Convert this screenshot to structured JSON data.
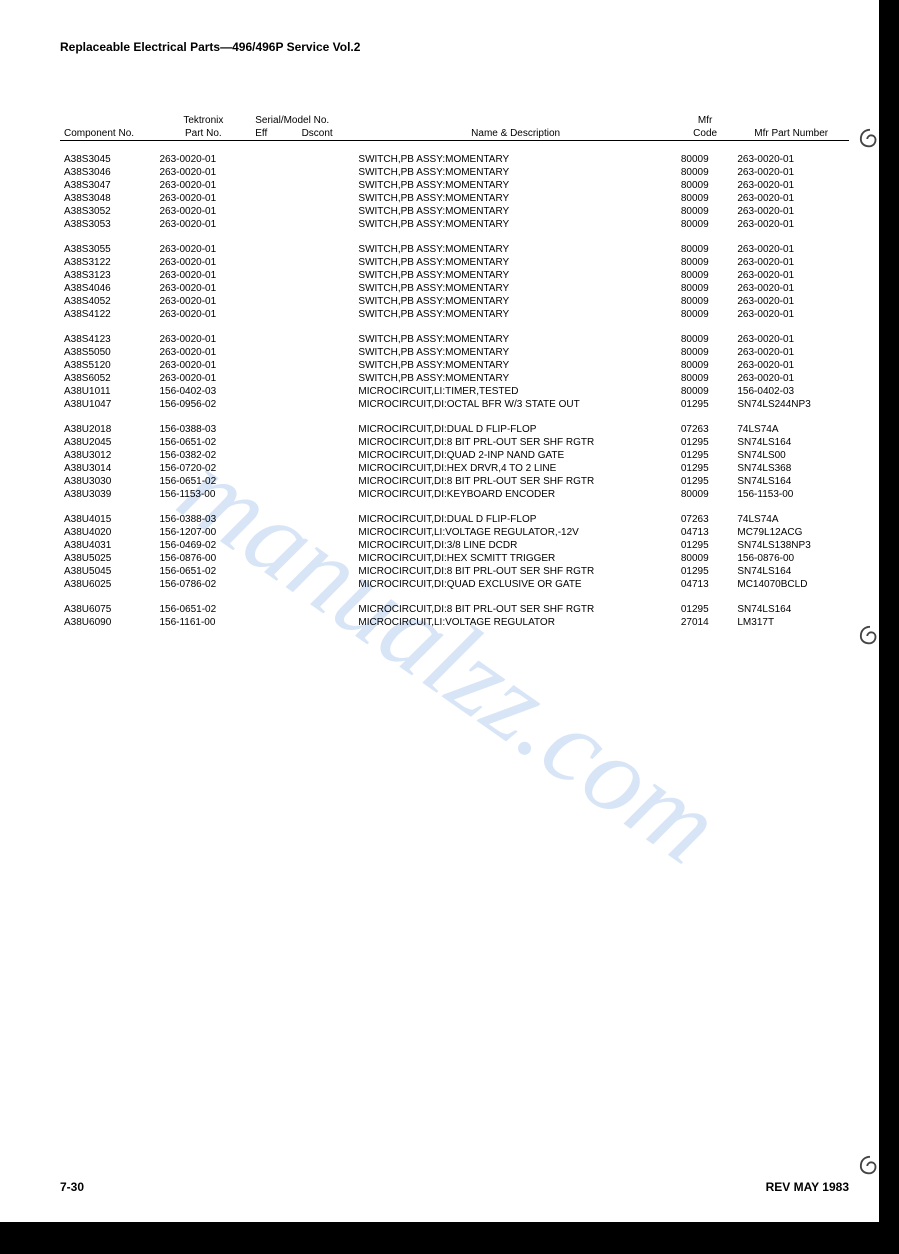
{
  "doc_title": "Replaceable Electrical Parts—496/496P Service Vol.2",
  "headers": {
    "comp": "Component No.",
    "tek_top": "Tektronix",
    "tek_bot": "Part No.",
    "serial_top": "Serial/Model No.",
    "eff": "Eff",
    "dscont": "Dscont",
    "name": "Name & Description",
    "mfr_top": "Mfr",
    "mfr_bot": "Code",
    "mfr_part": "Mfr Part Number"
  },
  "rows": [
    {
      "c": "A38S3045",
      "p": "263-0020-01",
      "n": "SWITCH,PB ASSY:MOMENTARY",
      "m": "80009",
      "mp": "263-0020-01"
    },
    {
      "c": "A38S3046",
      "p": "263-0020-01",
      "n": "SWITCH,PB ASSY:MOMENTARY",
      "m": "80009",
      "mp": "263-0020-01"
    },
    {
      "c": "A38S3047",
      "p": "263-0020-01",
      "n": "SWITCH,PB ASSY:MOMENTARY",
      "m": "80009",
      "mp": "263-0020-01"
    },
    {
      "c": "A38S3048",
      "p": "263-0020-01",
      "n": "SWITCH,PB ASSY:MOMENTARY",
      "m": "80009",
      "mp": "263-0020-01"
    },
    {
      "c": "A38S3052",
      "p": "263-0020-01",
      "n": "SWITCH,PB ASSY:MOMENTARY",
      "m": "80009",
      "mp": "263-0020-01"
    },
    {
      "c": "A38S3053",
      "p": "263-0020-01",
      "n": "SWITCH,PB ASSY:MOMENTARY",
      "m": "80009",
      "mp": "263-0020-01"
    },
    {
      "gap": true
    },
    {
      "c": "A38S3055",
      "p": "263-0020-01",
      "n": "SWITCH,PB ASSY:MOMENTARY",
      "m": "80009",
      "mp": "263-0020-01"
    },
    {
      "c": "A38S3122",
      "p": "263-0020-01",
      "n": "SWITCH,PB ASSY:MOMENTARY",
      "m": "80009",
      "mp": "263-0020-01"
    },
    {
      "c": "A38S3123",
      "p": "263-0020-01",
      "n": "SWITCH,PB ASSY:MOMENTARY",
      "m": "80009",
      "mp": "263-0020-01"
    },
    {
      "c": "A38S4046",
      "p": "263-0020-01",
      "n": "SWITCH,PB ASSY:MOMENTARY",
      "m": "80009",
      "mp": "263-0020-01"
    },
    {
      "c": "A38S4052",
      "p": "263-0020-01",
      "n": "SWITCH,PB ASSY:MOMENTARY",
      "m": "80009",
      "mp": "263-0020-01"
    },
    {
      "c": "A38S4122",
      "p": "263-0020-01",
      "n": "SWITCH,PB ASSY:MOMENTARY",
      "m": "80009",
      "mp": "263-0020-01"
    },
    {
      "gap": true
    },
    {
      "c": "A38S4123",
      "p": "263-0020-01",
      "n": "SWITCH,PB ASSY:MOMENTARY",
      "m": "80009",
      "mp": "263-0020-01"
    },
    {
      "c": "A38S5050",
      "p": "263-0020-01",
      "n": "SWITCH,PB ASSY:MOMENTARY",
      "m": "80009",
      "mp": "263-0020-01"
    },
    {
      "c": "A38S5120",
      "p": "263-0020-01",
      "n": "SWITCH,PB ASSY:MOMENTARY",
      "m": "80009",
      "mp": "263-0020-01"
    },
    {
      "c": "A38S6052",
      "p": "263-0020-01",
      "n": "SWITCH,PB ASSY:MOMENTARY",
      "m": "80009",
      "mp": "263-0020-01"
    },
    {
      "c": "A38U1011",
      "p": "156-0402-03",
      "n": "MICROCIRCUIT,LI:TIMER,TESTED",
      "m": "80009",
      "mp": "156-0402-03"
    },
    {
      "c": "A38U1047",
      "p": "156-0956-02",
      "n": "MICROCIRCUIT,DI:OCTAL BFR W/3 STATE OUT",
      "m": "01295",
      "mp": "SN74LS244NP3"
    },
    {
      "gap": true
    },
    {
      "c": "A38U2018",
      "p": "156-0388-03",
      "n": "MICROCIRCUIT,DI:DUAL D FLIP-FLOP",
      "m": "07263",
      "mp": "74LS74A"
    },
    {
      "c": "A38U2045",
      "p": "156-0651-02",
      "n": "MICROCIRCUIT,DI:8 BIT PRL-OUT SER SHF RGTR",
      "m": "01295",
      "mp": "SN74LS164"
    },
    {
      "c": "A38U3012",
      "p": "156-0382-02",
      "n": "MICROCIRCUIT,DI:QUAD 2-INP NAND GATE",
      "m": "01295",
      "mp": "SN74LS00"
    },
    {
      "c": "A38U3014",
      "p": "156-0720-02",
      "n": "MICROCIRCUIT,DI:HEX DRVR,4 TO 2 LINE",
      "m": "01295",
      "mp": "SN74LS368"
    },
    {
      "c": "A38U3030",
      "p": "156-0651-02",
      "n": "MICROCIRCUIT,DI:8 BIT PRL-OUT SER SHF RGTR",
      "m": "01295",
      "mp": "SN74LS164"
    },
    {
      "c": "A38U3039",
      "p": "156-1153-00",
      "n": "MICROCIRCUIT,DI:KEYBOARD ENCODER",
      "m": "80009",
      "mp": "156-1153-00"
    },
    {
      "gap": true
    },
    {
      "c": "A38U4015",
      "p": "156-0388-03",
      "n": "MICROCIRCUIT,DI:DUAL D FLIP-FLOP",
      "m": "07263",
      "mp": "74LS74A"
    },
    {
      "c": "A38U4020",
      "p": "156-1207-00",
      "n": "MICROCIRCUIT,LI:VOLTAGE REGULATOR,-12V",
      "m": "04713",
      "mp": "MC79L12ACG"
    },
    {
      "c": "A38U4031",
      "p": "156-0469-02",
      "n": "MICROCIRCUIT,DI:3/8 LINE DCDR",
      "m": "01295",
      "mp": "SN74LS138NP3"
    },
    {
      "c": "A38U5025",
      "p": "156-0876-00",
      "n": "MICROCIRCUIT,DI:HEX SCMITT TRIGGER",
      "m": "80009",
      "mp": "156-0876-00"
    },
    {
      "c": "A38U5045",
      "p": "156-0651-02",
      "n": "MICROCIRCUIT,DI:8 BIT PRL-OUT SER SHF RGTR",
      "m": "01295",
      "mp": "SN74LS164"
    },
    {
      "c": "A38U6025",
      "p": "156-0786-02",
      "n": "MICROCIRCUIT,DI:QUAD EXCLUSIVE OR GATE",
      "m": "04713",
      "mp": "MC14070BCLD"
    },
    {
      "gap": true
    },
    {
      "c": "A38U6075",
      "p": "156-0651-02",
      "n": "MICROCIRCUIT,DI:8 BIT PRL-OUT SER SHF RGTR",
      "m": "01295",
      "mp": "SN74LS164"
    },
    {
      "c": "A38U6090",
      "p": "156-1161-00",
      "n": "MICROCIRCUIT,LI:VOLTAGE REGULATOR",
      "m": "27014",
      "mp": "LM317T"
    }
  ],
  "footer": {
    "left": "7-30",
    "right": "REV MAY 1983"
  },
  "watermark": "manualzz.com",
  "spiral_positions": [
    128,
    625,
    1155
  ]
}
